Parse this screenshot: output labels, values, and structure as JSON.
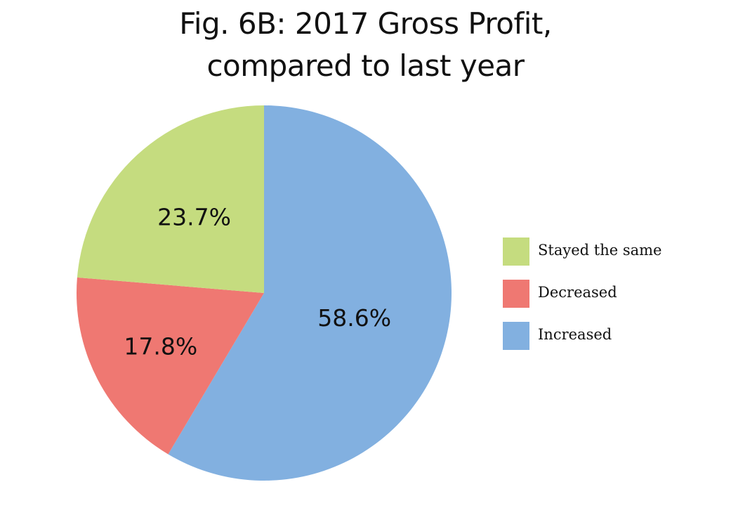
{
  "chart_data": {
    "type": "pie",
    "title": [
      "Fig. 6B: 2017 Gross Profit,",
      "compared to last year"
    ],
    "slices": [
      {
        "label": "Increased",
        "value": 58.6,
        "value_label": "58.6%",
        "color": "#82b0e0"
      },
      {
        "label": "Decreased",
        "value": 17.8,
        "value_label": "17.8%",
        "color": "#ef7872"
      },
      {
        "label": "Stayed the same",
        "value": 23.7,
        "value_label": "23.7%",
        "color": "#c5dc7f"
      }
    ],
    "legend": {
      "placement": "right",
      "entries": [
        "Stayed the same",
        "Decreased",
        "Increased"
      ]
    },
    "start": "12 o'clock",
    "direction": "clockwise"
  }
}
